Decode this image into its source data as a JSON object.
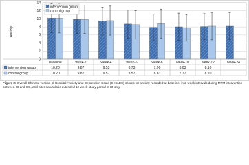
{
  "chart_data": {
    "type": "bar",
    "y_label": "Anxiety",
    "categories": [
      "baseline",
      "week-2",
      "week-4",
      "week-6",
      "week-8",
      "week-10",
      "week-12",
      "week-24"
    ],
    "series": [
      {
        "name": "intervention group",
        "color": "#3f6fb0",
        "values": [
          10.2,
          9.87,
          9.53,
          8.73,
          7.9,
          8.03,
          8.1,
          8.2
        ],
        "value_labels": [
          "10.20",
          "9.87",
          "9.53",
          "8.73",
          "7.90",
          "8.03",
          "8.10",
          null
        ],
        "errors": [
          3.6,
          3.5,
          3.4,
          3.5,
          3.3,
          3.4,
          3.2,
          3.3
        ]
      },
      {
        "name": "control group",
        "color": "#a9c7ea",
        "values": [
          10.2,
          9.87,
          9.57,
          8.57,
          8.83,
          7.77,
          8.2,
          null
        ],
        "value_labels": [
          "10.20",
          "9.87",
          "9.57",
          "8.57",
          "8.83",
          "7.77",
          "8.20",
          null
        ],
        "errors": [
          3.7,
          3.5,
          3.6,
          3.5,
          3.6,
          3.3,
          3.4,
          null
        ]
      }
    ],
    "ylim": [
      0,
      14
    ],
    "yticks": [
      0,
      2,
      4,
      6,
      8,
      10,
      12,
      14
    ],
    "grid": true,
    "legend": "top-left",
    "caption_label": "Figure 2:",
    "caption": "Overall Chinese version of Hospital Anxiety and Depression Scale (C-HADS) scores for anxiety recorded at baseline, in 2-week intervals during MTM intervention between IG and CG, and after naturalistic extended 12-week study period in IG only."
  }
}
